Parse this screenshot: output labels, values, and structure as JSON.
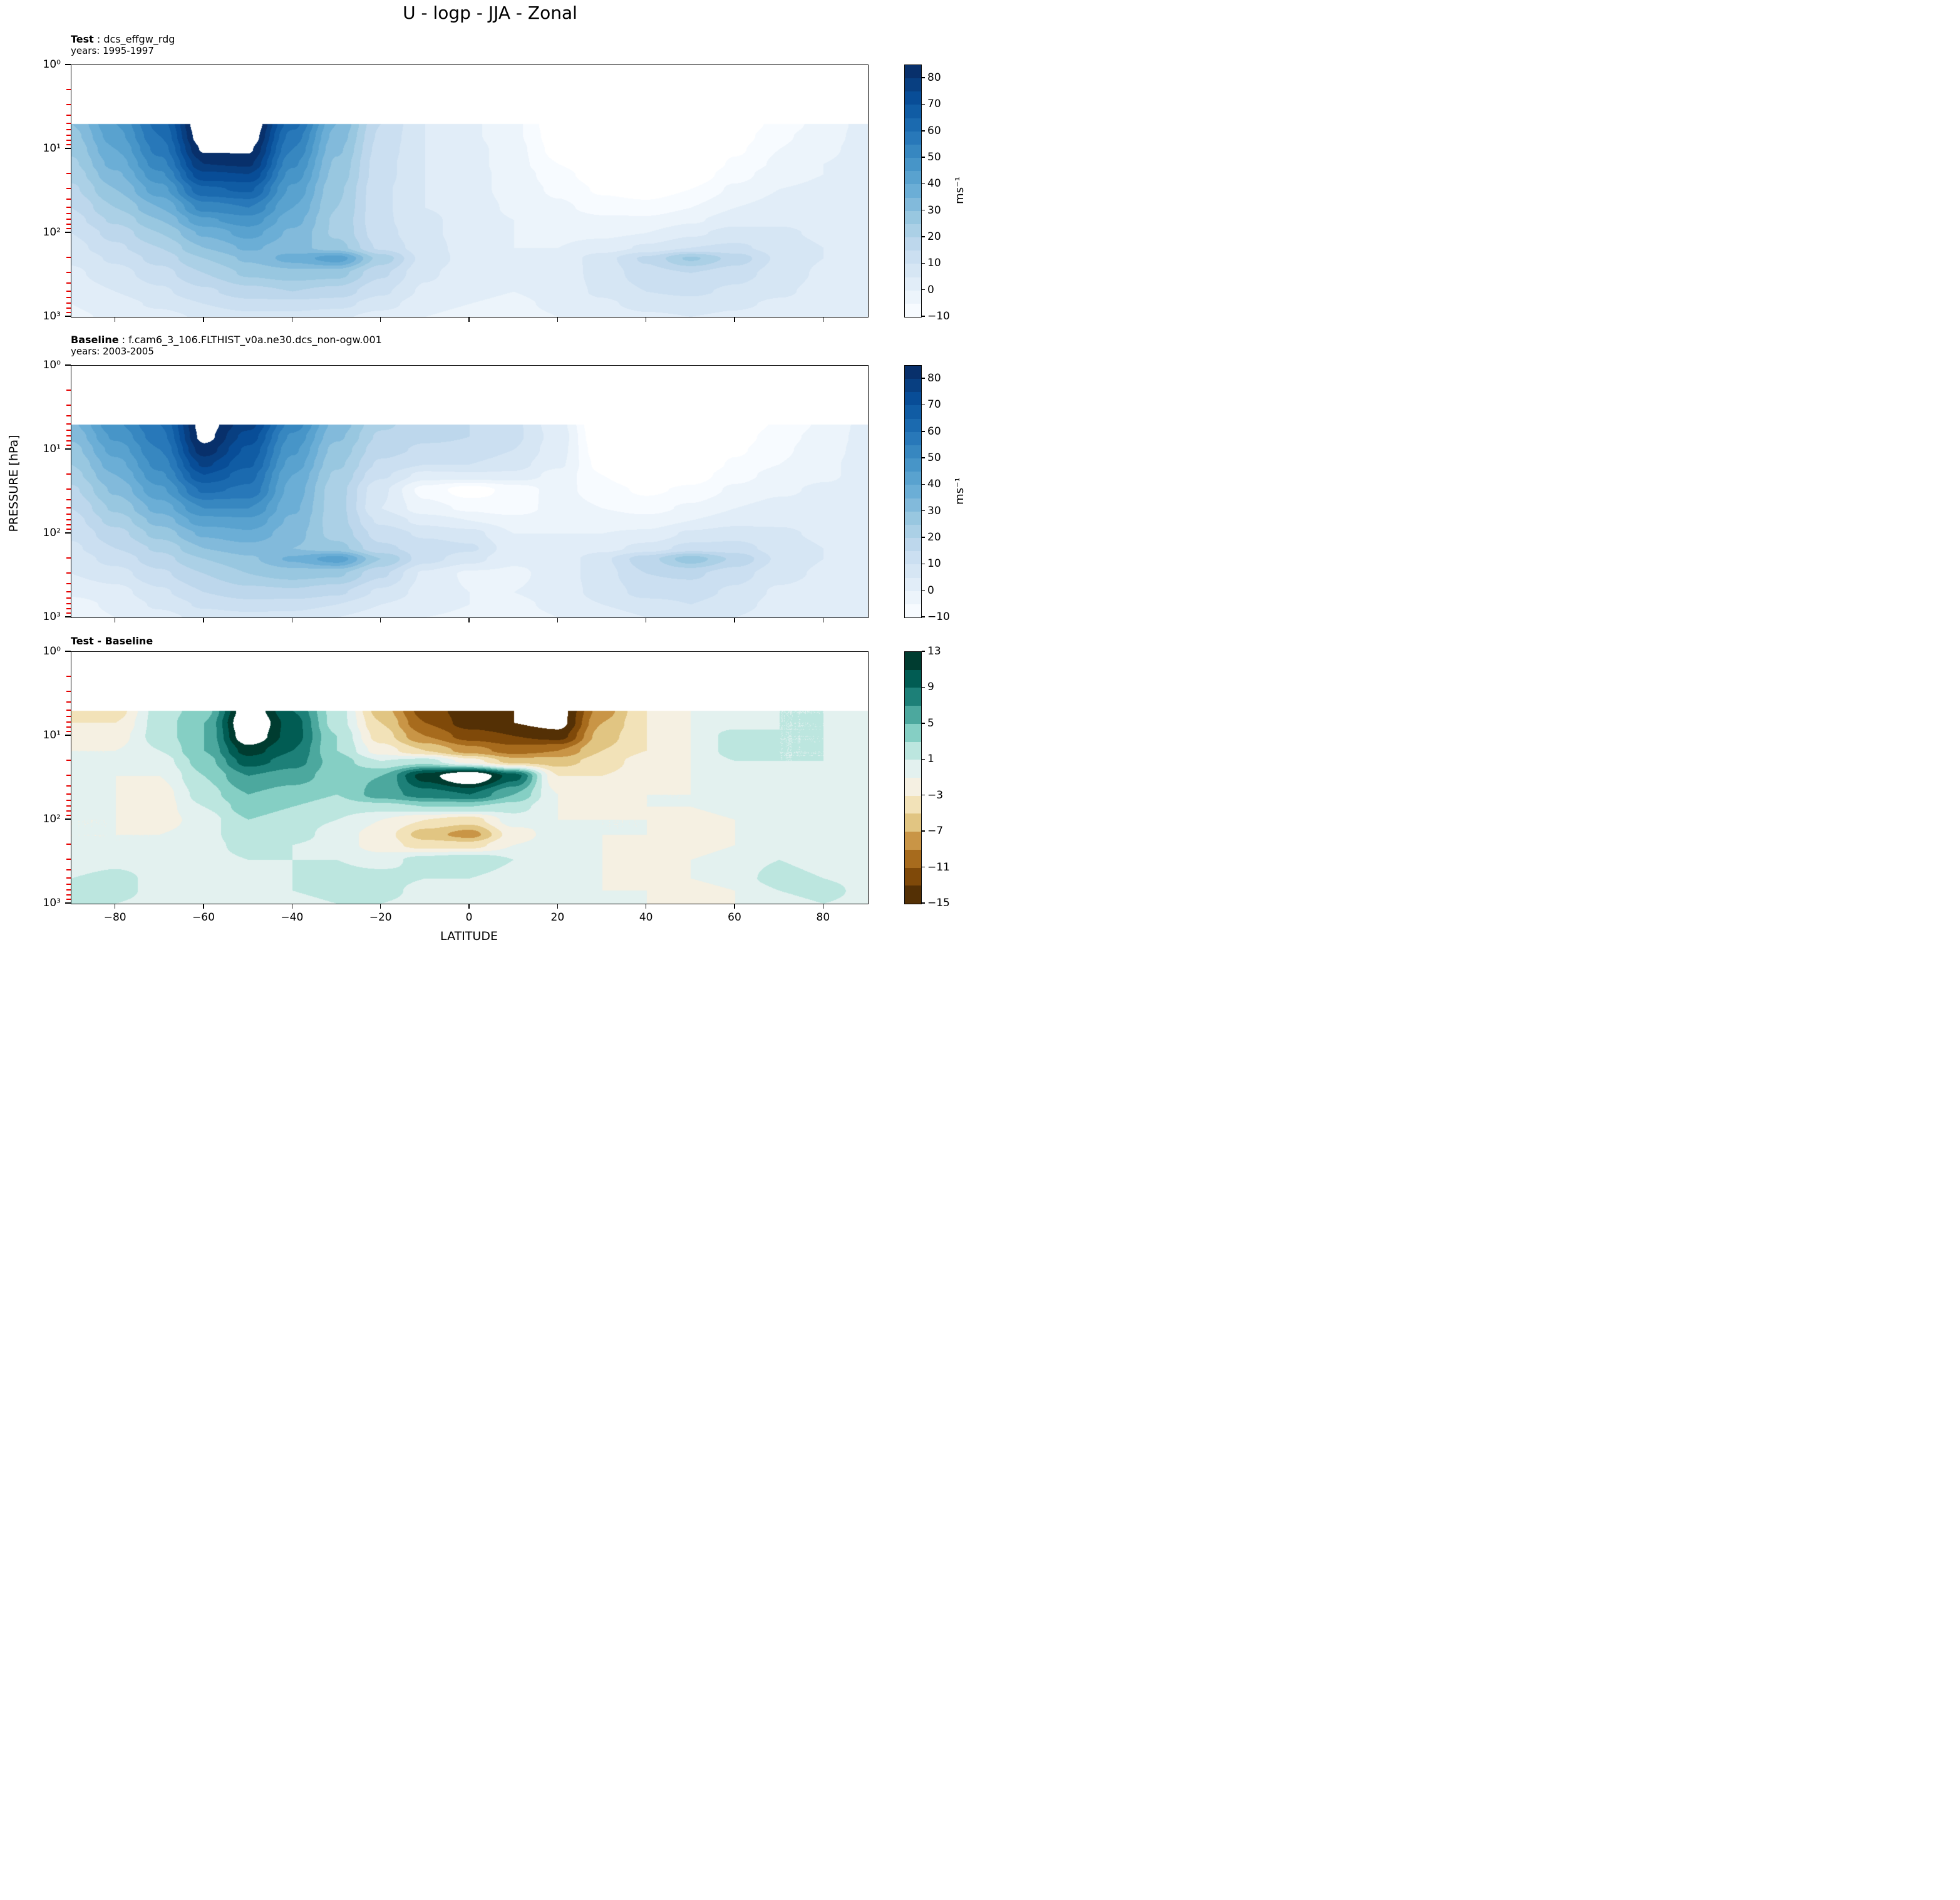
{
  "title": "U - logp - JJA - Zonal",
  "ylabel": "PRESSURE [hPa]",
  "xlabel": "LATITUDE",
  "colorbar_label": "ms⁻¹",
  "panels": [
    {
      "header_bold": "Test",
      "header_rest": " : dcs_effgw_rdg",
      "subheader": "years: 1995-1997"
    },
    {
      "header_bold": "Baseline",
      "header_rest": " : f.cam6_3_106.FLTHIST_v0a.ne30.dcs_non-ogw.001",
      "subheader": "years: 2003-2005"
    },
    {
      "header_bold": "Test - Baseline",
      "header_rest": "",
      "subheader": ""
    }
  ],
  "axes": {
    "x_tick_values": [
      -80,
      -60,
      -40,
      -20,
      0,
      20,
      40,
      60,
      80
    ],
    "x_tick_labels": [
      "−80",
      "−60",
      "−40",
      "−20",
      "0",
      "20",
      "40",
      "60",
      "80"
    ],
    "y_tick_values": [
      1,
      10,
      100,
      1000
    ],
    "y_tick_labels": [
      "10⁰",
      "10¹",
      "10²",
      "10³"
    ],
    "xlim": [
      -90,
      90
    ],
    "p_range_hPa": [
      1,
      1000
    ],
    "y_scale": "log",
    "data_top_hPa": 5,
    "grid": false
  },
  "colors": {
    "spine": "#000000",
    "minor_tick": "#e50000",
    "background": "#ffffff"
  },
  "chart_data": [
    {
      "name": "Test",
      "type": "heatmap",
      "style": "filled_contour",
      "title": "Test : dcs_effgw_rdg, years: 1995-1997",
      "units": "ms⁻¹",
      "x_name": "latitude_deg",
      "y_name": "pressure_hPa",
      "x": [
        -90,
        -80,
        -70,
        -60,
        -50,
        -40,
        -30,
        -20,
        -10,
        0,
        10,
        20,
        30,
        40,
        50,
        60,
        70,
        80,
        90
      ],
      "y": [
        5,
        7,
        10,
        15,
        20,
        30,
        50,
        70,
        100,
        150,
        200,
        300,
        500,
        700,
        1000
      ],
      "values": [
        [
          30,
          45,
          62,
          92,
          92,
          62,
          35,
          15,
          5,
          1,
          -4,
          -14,
          -25,
          -30,
          -25,
          -15,
          -8,
          -3,
          2
        ],
        [
          28,
          43,
          60,
          90,
          90,
          58,
          33,
          14,
          5,
          1,
          -4,
          -13,
          -23,
          -28,
          -23,
          -13,
          -6,
          -2,
          2
        ],
        [
          26,
          40,
          57,
          86,
          86,
          55,
          31,
          13,
          5,
          2,
          -3,
          -12,
          -20,
          -25,
          -20,
          -11,
          -5,
          -1,
          2
        ],
        [
          24,
          37,
          53,
          80,
          81,
          51,
          29,
          12,
          5,
          2,
          -3,
          -10,
          -17,
          -21,
          -17,
          -9,
          -4,
          0,
          2
        ],
        [
          22,
          34,
          49,
          74,
          75,
          48,
          28,
          12,
          5,
          2,
          -2,
          -8,
          -14,
          -18,
          -14,
          -7,
          -2,
          0,
          2
        ],
        [
          19,
          30,
          43,
          64,
          66,
          44,
          26,
          11,
          5,
          2,
          -2,
          -6,
          -11,
          -13,
          -10,
          -4,
          0,
          1,
          2
        ],
        [
          15,
          25,
          35,
          52,
          55,
          40,
          25,
          11,
          5,
          3,
          -1,
          -4,
          -7,
          -8,
          -5,
          0,
          2,
          2,
          2
        ],
        [
          13,
          21,
          30,
          44,
          48,
          37,
          24,
          11,
          6,
          3,
          0,
          -2,
          -4,
          -4,
          -1,
          3,
          4,
          3,
          2
        ],
        [
          10,
          17,
          25,
          36,
          42,
          34,
          24,
          12,
          6,
          3,
          0,
          -1,
          -1,
          0,
          4,
          7,
          6,
          4,
          2
        ],
        [
          8,
          14,
          20,
          30,
          36,
          32,
          27,
          14,
          7,
          3,
          0,
          0,
          2,
          6,
          10,
          11,
          8,
          5,
          2
        ],
        [
          6,
          11,
          17,
          25,
          31,
          37,
          43,
          23,
          8,
          3,
          0,
          1,
          8,
          16,
          26,
          18,
          9,
          5,
          2
        ],
        [
          4,
          8,
          13,
          20,
          26,
          28,
          27,
          16,
          6,
          2,
          0,
          2,
          7,
          13,
          15,
          12,
          8,
          4,
          1
        ],
        [
          2,
          5,
          9,
          14,
          18,
          20,
          18,
          11,
          4,
          1,
          0,
          2,
          6,
          10,
          11,
          9,
          6,
          3,
          1
        ],
        [
          0,
          3,
          6,
          10,
          13,
          13,
          12,
          7,
          2,
          0,
          -1,
          1,
          4,
          7,
          8,
          6,
          4,
          2,
          0
        ],
        [
          -1,
          1,
          3,
          6,
          8,
          8,
          6,
          3,
          0,
          -2,
          -2,
          0,
          2,
          4,
          5,
          4,
          2,
          1,
          0
        ]
      ],
      "level_min": -10,
      "level_max": 85,
      "level_step": 5,
      "colorbar_ticks": [
        80,
        70,
        60,
        50,
        40,
        30,
        20,
        10,
        0,
        -10
      ],
      "colormap": "Blues",
      "colormap_stops": [
        "#f7fbff",
        "#deebf7",
        "#c6dbef",
        "#9ecae1",
        "#6baed6",
        "#4292c6",
        "#2171b5",
        "#08519c",
        "#08306b"
      ]
    },
    {
      "name": "Baseline",
      "type": "heatmap",
      "style": "filled_contour",
      "title": "Baseline : f.cam6_3_106.FLTHIST_v0a.ne30.dcs_non-ogw.001, years: 2003-2005",
      "units": "ms⁻¹",
      "x_name": "latitude_deg",
      "y_name": "pressure_hPa",
      "x": [
        -90,
        -80,
        -70,
        -60,
        -50,
        -40,
        -30,
        -20,
        -10,
        0,
        10,
        20,
        30,
        40,
        50,
        60,
        70,
        80,
        90
      ],
      "y": [
        5,
        7,
        10,
        15,
        20,
        30,
        50,
        70,
        100,
        150,
        200,
        300,
        500,
        700,
        1000
      ],
      "values": [
        [
          34,
          49,
          60,
          88,
          77,
          53,
          33,
          21,
          17,
          15,
          11,
          2,
          -17,
          -27,
          -24,
          -15,
          -9,
          -4,
          2
        ],
        [
          31,
          46,
          58,
          87,
          73,
          49,
          31,
          19,
          16,
          15,
          11,
          3,
          -16,
          -25,
          -22,
          -13,
          -7,
          -3,
          2
        ],
        [
          28,
          42,
          55,
          83,
          69,
          46,
          28,
          17,
          14,
          14,
          10,
          2,
          -14,
          -22,
          -19,
          -11,
          -6,
          -2,
          2
        ],
        [
          25,
          38,
          52,
          76,
          66,
          43,
          26,
          14,
          10,
          10,
          7,
          1,
          -12,
          -18,
          -16,
          -9,
          -5,
          -1,
          2
        ],
        [
          23,
          35,
          49,
          70,
          62,
          40,
          24,
          11,
          3,
          4,
          4,
          -2,
          -10,
          -16,
          -13,
          -7,
          -3,
          -1,
          2
        ],
        [
          19,
          31,
          44,
          61,
          59,
          38,
          22,
          6,
          -7,
          -13,
          -8,
          -3,
          -8,
          -11,
          -9,
          -4,
          -1,
          1,
          2
        ],
        [
          15,
          26,
          37,
          50,
          50,
          36,
          22,
          5,
          -3,
          -6,
          -9,
          -2,
          -5,
          -7,
          -4,
          0,
          2,
          2,
          2
        ],
        [
          13,
          22,
          32,
          43,
          44,
          34,
          22,
          9,
          3,
          0,
          -2,
          -1,
          -2,
          -3,
          0,
          3,
          4,
          3,
          2
        ],
        [
          11,
          18,
          27,
          36,
          39,
          32,
          23,
          13,
          9,
          7,
          0,
          0,
          0,
          1,
          6,
          8,
          6,
          4,
          2
        ],
        [
          9,
          15,
          21,
          30,
          33,
          30,
          27,
          16,
          13,
          11,
          2,
          0,
          3,
          7,
          12,
          12,
          8,
          5,
          2
        ],
        [
          7,
          12,
          18,
          25,
          29,
          36,
          43,
          25,
          12,
          7,
          1,
          1,
          9,
          18,
          28,
          19,
          9,
          5,
          2
        ],
        [
          5,
          8,
          14,
          20,
          25,
          27,
          26,
          16,
          4,
          -1,
          -1,
          2,
          8,
          15,
          16,
          12,
          7,
          4,
          1
        ],
        [
          1,
          3,
          9,
          15,
          18,
          19,
          16,
          9,
          3,
          0,
          0,
          2,
          7,
          12,
          12,
          9,
          4,
          2,
          1
        ],
        [
          -2,
          1,
          6,
          11,
          13,
          12,
          10,
          5,
          2,
          0,
          -1,
          1,
          5,
          8,
          10,
          7,
          3,
          0,
          0
        ],
        [
          -3,
          0,
          3,
          7,
          8,
          8,
          5,
          2,
          0,
          -1,
          -2,
          0,
          2,
          5,
          7,
          5,
          2,
          0,
          0
        ]
      ],
      "level_min": -10,
      "level_max": 85,
      "level_step": 5,
      "colorbar_ticks": [
        80,
        70,
        60,
        50,
        40,
        30,
        20,
        10,
        0,
        -10
      ],
      "colormap": "Blues",
      "colormap_stops": [
        "#f7fbff",
        "#deebf7",
        "#c6dbef",
        "#9ecae1",
        "#6baed6",
        "#4292c6",
        "#2171b5",
        "#08519c",
        "#08306b"
      ]
    },
    {
      "name": "Test - Baseline",
      "type": "heatmap",
      "style": "filled_contour",
      "title": "Test - Baseline",
      "units": "ms⁻¹",
      "x_name": "latitude_deg",
      "y_name": "pressure_hPa",
      "x": [
        -90,
        -80,
        -70,
        -60,
        -50,
        -40,
        -30,
        -20,
        -10,
        0,
        10,
        20,
        30,
        40,
        50,
        60,
        70,
        80,
        90
      ],
      "y": [
        5,
        7,
        10,
        15,
        20,
        30,
        50,
        70,
        100,
        150,
        200,
        300,
        500,
        700,
        1000
      ],
      "values": [
        [
          -4,
          -4,
          2,
          4,
          15,
          9,
          2,
          -6,
          -12,
          -14,
          -15,
          -16,
          -8,
          -3,
          -1,
          0,
          1,
          1,
          0
        ],
        [
          -3,
          -3,
          2,
          5,
          16,
          10,
          2,
          -5,
          -11,
          -14,
          -15,
          -16,
          -7,
          -3,
          -1,
          0,
          1,
          1,
          0
        ],
        [
          -2,
          -2,
          2,
          5,
          15,
          10,
          3,
          -4,
          -9,
          -12,
          -13,
          -14,
          -6,
          -3,
          -1,
          2,
          1,
          1,
          0
        ],
        [
          -1,
          -1,
          1,
          5,
          12,
          9,
          3,
          -2,
          -5,
          -8,
          -10,
          -9,
          -5,
          -3,
          -1,
          2,
          1,
          1,
          0
        ],
        [
          -1,
          -1,
          0,
          4,
          10,
          8,
          4,
          1,
          2,
          -2,
          -6,
          -6,
          -4,
          -2,
          -1,
          1,
          1,
          1,
          0
        ],
        [
          0,
          -1,
          -1,
          3,
          7,
          6,
          4,
          5,
          12,
          16,
          10,
          -3,
          -3,
          -2,
          -1,
          0,
          1,
          0,
          0
        ],
        [
          0,
          -1,
          -2,
          2,
          5,
          4,
          3,
          6,
          8,
          9,
          5,
          -1,
          -2,
          -1,
          -1,
          0,
          0,
          0,
          0
        ],
        [
          0,
          -1,
          -2,
          1,
          4,
          3,
          2,
          2,
          3,
          3,
          2,
          -1,
          -2,
          -1,
          -1,
          0,
          0,
          0,
          0
        ],
        [
          -1,
          -1,
          -2,
          0,
          3,
          2,
          1,
          -1,
          -3,
          -4,
          0,
          -1,
          -1,
          -1,
          -2,
          -1,
          0,
          0,
          0
        ],
        [
          -1,
          -1,
          -1,
          0,
          3,
          2,
          0,
          -2,
          -6,
          -8,
          -2,
          0,
          -1,
          -1,
          -2,
          -1,
          0,
          0,
          0
        ],
        [
          -1,
          -1,
          -1,
          0,
          2,
          1,
          0,
          -2,
          -4,
          -4,
          -1,
          0,
          -1,
          -2,
          -2,
          -1,
          0,
          0,
          0
        ],
        [
          -1,
          0,
          -1,
          0,
          1,
          1,
          1,
          0,
          2,
          3,
          1,
          0,
          -1,
          -2,
          -1,
          0,
          1,
          0,
          0
        ],
        [
          1,
          2,
          0,
          -1,
          0,
          1,
          2,
          2,
          1,
          1,
          0,
          0,
          -1,
          -2,
          -1,
          0,
          2,
          1,
          0
        ],
        [
          2,
          2,
          0,
          -1,
          0,
          1,
          2,
          2,
          0,
          0,
          0,
          0,
          -1,
          -1,
          -2,
          -1,
          1,
          2,
          0
        ],
        [
          2,
          1,
          0,
          -1,
          0,
          0,
          1,
          1,
          0,
          -1,
          0,
          0,
          0,
          -1,
          -2,
          -1,
          0,
          1,
          0
        ]
      ],
      "level_min": -15,
      "level_max": 13,
      "level_step": 2,
      "colorbar_ticks": [
        13,
        9,
        5,
        1,
        -3,
        -7,
        -11,
        -15
      ],
      "colormap": "BrBG",
      "colormap_stops": [
        "#543005",
        "#8c510a",
        "#bf812d",
        "#dfc27d",
        "#f6e8c3",
        "#f5f5f5",
        "#c7eae5",
        "#80cdc1",
        "#35978f",
        "#01665e",
        "#003c30"
      ]
    }
  ]
}
